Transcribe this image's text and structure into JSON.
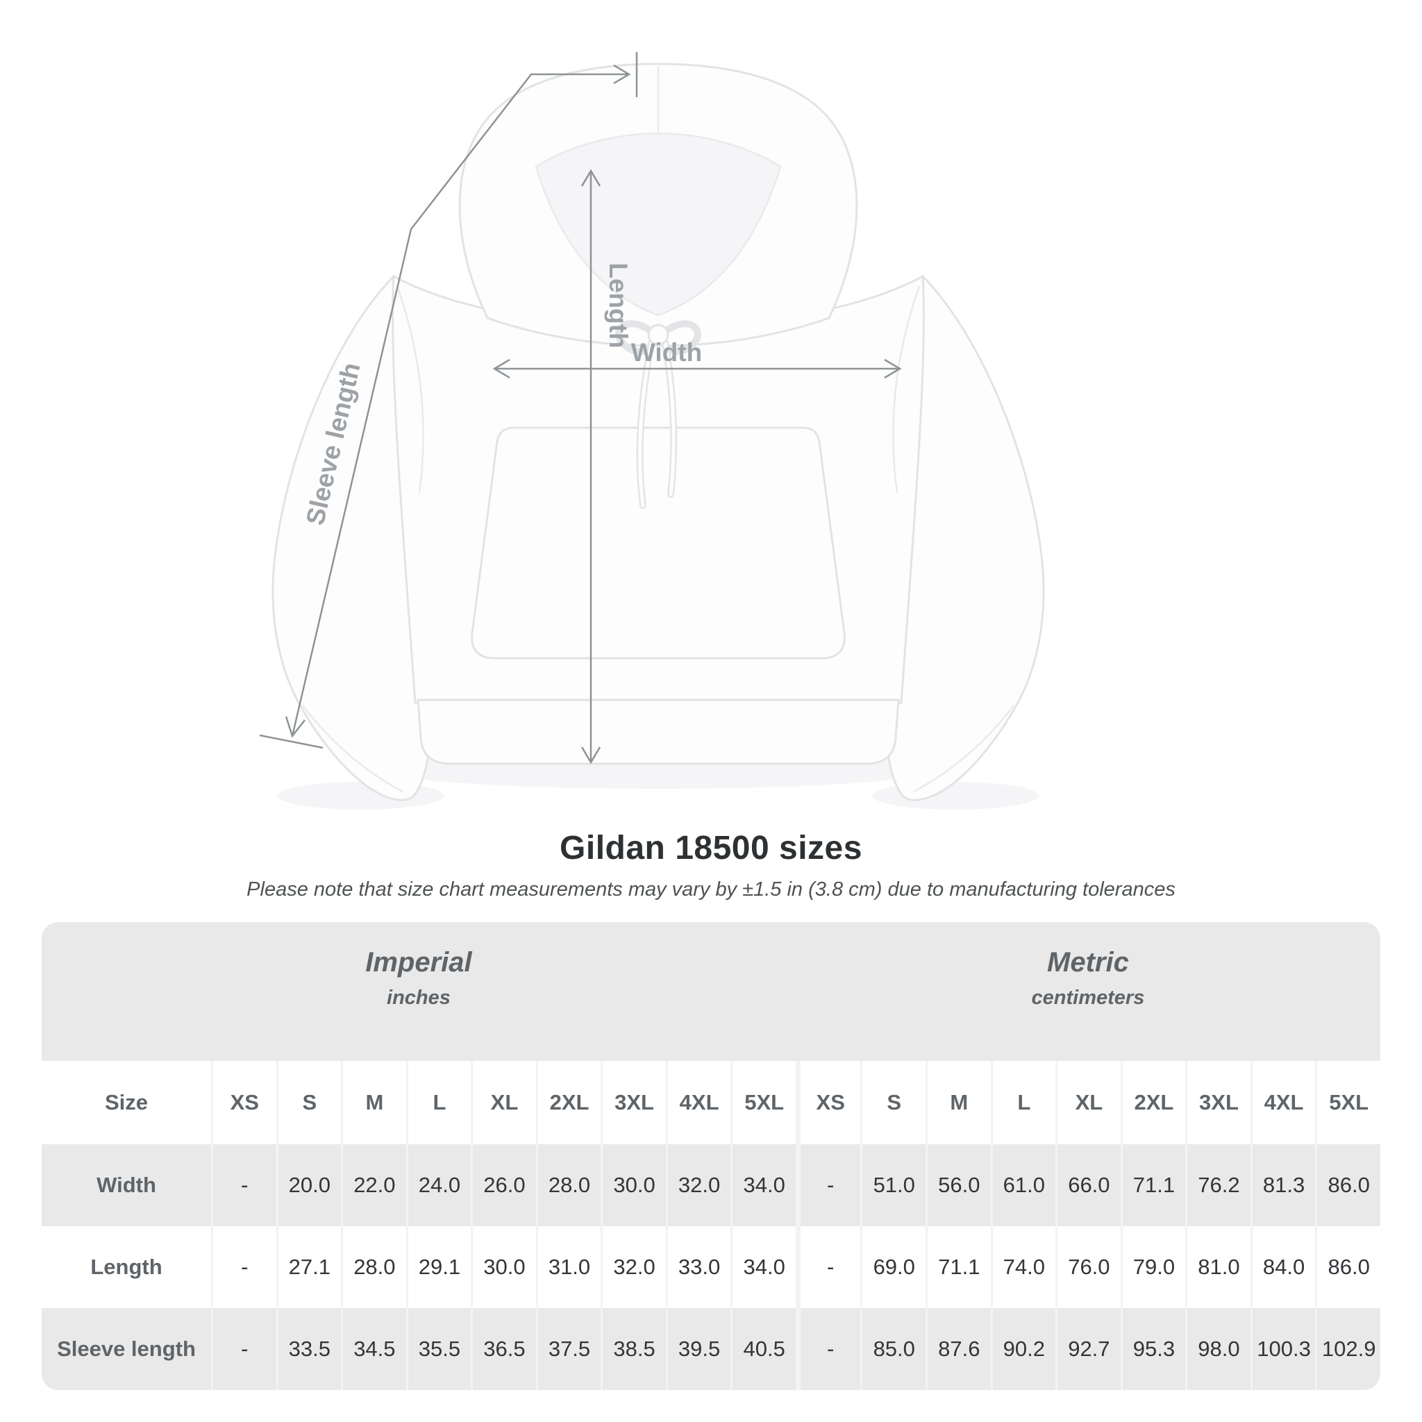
{
  "figure": {
    "measure_labels": {
      "length": "Length",
      "width": "Width",
      "sleeve_length": "Sleeve length"
    }
  },
  "chart_data": {
    "type": "table",
    "title": "Gildan 18500 sizes",
    "subtitle": "Please note that size chart measurements may vary by ±1.5 in (3.8 cm) due to manufacturing tolerances",
    "unit_groups": [
      {
        "label": "Imperial",
        "sublabel": "inches",
        "columns": 10
      },
      {
        "label": "Metric",
        "sublabel": "centimeters",
        "columns": 9
      }
    ],
    "header": [
      "Size",
      "XS",
      "S",
      "M",
      "L",
      "XL",
      "2XL",
      "3XL",
      "4XL",
      "5XL",
      "XS",
      "S",
      "M",
      "L",
      "XL",
      "2XL",
      "3XL",
      "4XL",
      "5XL"
    ],
    "rows": [
      {
        "label": "Width",
        "imperial": [
          "-",
          "20.0",
          "22.0",
          "24.0",
          "26.0",
          "28.0",
          "30.0",
          "32.0",
          "34.0"
        ],
        "metric": [
          "-",
          "51.0",
          "56.0",
          "61.0",
          "66.0",
          "71.1",
          "76.2",
          "81.3",
          "86.0"
        ]
      },
      {
        "label": "Length",
        "imperial": [
          "-",
          "27.1",
          "28.0",
          "29.1",
          "30.0",
          "31.0",
          "32.0",
          "33.0",
          "34.0"
        ],
        "metric": [
          "-",
          "69.0",
          "71.1",
          "74.0",
          "76.0",
          "79.0",
          "81.0",
          "84.0",
          "86.0"
        ]
      },
      {
        "label": "Sleeve length",
        "imperial": [
          "-",
          "33.5",
          "34.5",
          "35.5",
          "36.5",
          "37.5",
          "38.5",
          "39.5",
          "40.5"
        ],
        "metric": [
          "-",
          "85.0",
          "87.6",
          "90.2",
          "92.7",
          "95.3",
          "98.0",
          "100.3",
          "102.9"
        ]
      }
    ]
  },
  "colors": {
    "row_shade": "#e9e9e9",
    "label_text": "#5f6468",
    "value_text": "#323538",
    "annotation_line": "#8e9396",
    "annotation_label": "#9da2a6"
  }
}
